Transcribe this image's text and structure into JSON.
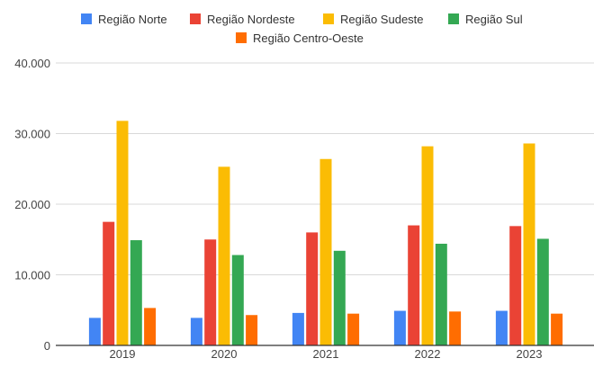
{
  "chart_data": {
    "type": "bar",
    "title": "",
    "xlabel": "",
    "ylabel": "",
    "categories": [
      "2019",
      "2020",
      "2021",
      "2022",
      "2023"
    ],
    "ylim": [
      0,
      40000
    ],
    "yticks": [
      0,
      10000,
      20000,
      30000,
      40000
    ],
    "ytick_labels": [
      "0",
      "10.000",
      "20.000",
      "30.000",
      "40.000"
    ],
    "grid": true,
    "legend_position": "top",
    "series": [
      {
        "name": "Região Norte",
        "color": "#4285F4",
        "values": [
          3900,
          3900,
          4600,
          4900,
          4900
        ]
      },
      {
        "name": "Região Nordeste",
        "color": "#EA4335",
        "values": [
          17500,
          15000,
          16000,
          17000,
          16900
        ]
      },
      {
        "name": "Região Sudeste",
        "color": "#FBBC04",
        "values": [
          31800,
          25300,
          26400,
          28200,
          28600
        ]
      },
      {
        "name": "Região Sul",
        "color": "#34A853",
        "values": [
          14900,
          12800,
          13400,
          14400,
          15100
        ]
      },
      {
        "name": "Região Centro-Oeste",
        "color": "#FF6D01",
        "values": [
          5300,
          4300,
          4500,
          4800,
          4500
        ]
      }
    ]
  }
}
